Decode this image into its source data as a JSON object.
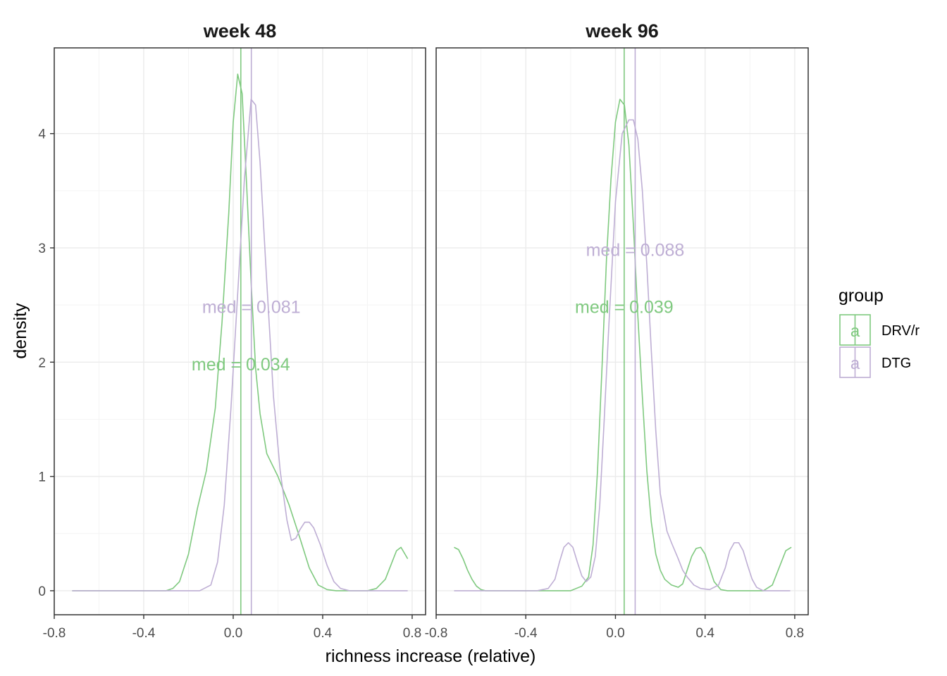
{
  "colors": {
    "drv": "#7FC97F",
    "dtg": "#BEAED4",
    "panel_border": "#333333",
    "grid_major": "#EBEBEB",
    "grid_minor": "#F4F4F4"
  },
  "chart_data": {
    "type": "line",
    "xlabel": "richness increase (relative)",
    "ylabel": "density",
    "xlim": [
      -0.8,
      0.86
    ],
    "ylim": [
      -0.21,
      4.75
    ],
    "x_ticks": [
      -0.8,
      -0.4,
      0.0,
      0.4,
      0.8
    ],
    "x_tick_labels": [
      "-0.8",
      "-0.4",
      "0.0",
      "0.4",
      "0.8"
    ],
    "y_ticks": [
      0,
      1,
      2,
      3,
      4
    ],
    "y_tick_labels": [
      "0",
      "1",
      "2",
      "3",
      "4"
    ],
    "grid": true,
    "legend": {
      "title": "group",
      "position": "right",
      "key_glyph": "a",
      "entries": [
        {
          "label": "DRV/r",
          "color_key": "drv"
        },
        {
          "label": "DTG",
          "color_key": "dtg"
        }
      ]
    },
    "panels": [
      {
        "title": "week 48",
        "series": [
          {
            "name": "DRV/r",
            "color_key": "drv",
            "median": 0.034,
            "x": [
              -0.72,
              -0.3,
              -0.27,
              -0.24,
              -0.2,
              -0.16,
              -0.12,
              -0.08,
              -0.05,
              -0.02,
              0.0,
              0.02,
              0.04,
              0.06,
              0.08,
              0.1,
              0.12,
              0.15,
              0.2,
              0.25,
              0.3,
              0.34,
              0.38,
              0.42,
              0.46,
              0.5,
              0.55,
              0.6,
              0.64,
              0.68,
              0.71,
              0.73,
              0.75,
              0.78
            ],
            "y": [
              0,
              0,
              0.02,
              0.08,
              0.32,
              0.72,
              1.05,
              1.6,
              2.35,
              3.3,
              4.1,
              4.52,
              4.35,
              3.55,
              2.7,
              1.95,
              1.55,
              1.2,
              1.0,
              0.75,
              0.45,
              0.2,
              0.05,
              0.01,
              0,
              0,
              0,
              0,
              0.02,
              0.1,
              0.25,
              0.35,
              0.38,
              0.28
            ]
          },
          {
            "name": "DTG",
            "color_key": "dtg",
            "median": 0.081,
            "x": [
              -0.72,
              -0.15,
              -0.1,
              -0.07,
              -0.04,
              -0.01,
              0.02,
              0.05,
              0.08,
              0.1,
              0.12,
              0.15,
              0.18,
              0.21,
              0.24,
              0.26,
              0.28,
              0.3,
              0.32,
              0.34,
              0.36,
              0.39,
              0.42,
              0.45,
              0.48,
              0.52,
              0.6,
              0.7,
              0.78
            ],
            "y": [
              0,
              0,
              0.05,
              0.25,
              0.75,
              1.6,
              2.6,
              3.6,
              4.3,
              4.25,
              3.75,
              2.7,
              1.7,
              1.05,
              0.62,
              0.44,
              0.46,
              0.54,
              0.6,
              0.6,
              0.55,
              0.4,
              0.22,
              0.08,
              0.02,
              0,
              0,
              0,
              0
            ]
          }
        ],
        "annotations": [
          {
            "text": "med = 0.081",
            "x": 0.081,
            "y": 2.47,
            "color_key": "dtg"
          },
          {
            "text": "med = 0.034",
            "x": 0.034,
            "y": 1.97,
            "color_key": "drv"
          }
        ]
      },
      {
        "title": "week 96",
        "series": [
          {
            "name": "DRV/r",
            "color_key": "drv",
            "median": 0.039,
            "x": [
              -0.72,
              -0.7,
              -0.68,
              -0.66,
              -0.64,
              -0.62,
              -0.6,
              -0.58,
              -0.55,
              -0.5,
              -0.2,
              -0.15,
              -0.12,
              -0.1,
              -0.08,
              -0.06,
              -0.04,
              -0.02,
              0.0,
              0.02,
              0.04,
              0.06,
              0.08,
              0.1,
              0.12,
              0.14,
              0.16,
              0.18,
              0.2,
              0.22,
              0.25,
              0.28,
              0.3,
              0.32,
              0.34,
              0.36,
              0.38,
              0.4,
              0.42,
              0.44,
              0.47,
              0.5,
              0.66,
              0.7,
              0.73,
              0.76,
              0.785
            ],
            "y": [
              0.38,
              0.36,
              0.28,
              0.18,
              0.1,
              0.04,
              0.01,
              0,
              0,
              0,
              0,
              0.04,
              0.12,
              0.4,
              1.05,
              1.95,
              2.9,
              3.6,
              4.1,
              4.3,
              4.25,
              3.9,
              3.2,
              2.4,
              1.7,
              1.05,
              0.6,
              0.32,
              0.18,
              0.1,
              0.05,
              0.03,
              0.06,
              0.18,
              0.3,
              0.37,
              0.38,
              0.32,
              0.2,
              0.08,
              0.01,
              0,
              0,
              0.05,
              0.2,
              0.35,
              0.38
            ]
          },
          {
            "name": "DTG",
            "color_key": "dtg",
            "median": 0.088,
            "x": [
              -0.72,
              -0.35,
              -0.3,
              -0.27,
              -0.25,
              -0.23,
              -0.21,
              -0.19,
              -0.17,
              -0.15,
              -0.13,
              -0.11,
              -0.09,
              -0.07,
              -0.05,
              -0.03,
              0.0,
              0.03,
              0.06,
              0.08,
              0.1,
              0.12,
              0.14,
              0.16,
              0.18,
              0.2,
              0.23,
              0.25,
              0.28,
              0.3,
              0.32,
              0.35,
              0.38,
              0.42,
              0.46,
              0.49,
              0.51,
              0.53,
              0.55,
              0.57,
              0.59,
              0.61,
              0.63,
              0.66,
              0.7,
              0.78
            ],
            "y": [
              0,
              0,
              0.02,
              0.1,
              0.25,
              0.38,
              0.42,
              0.38,
              0.25,
              0.13,
              0.08,
              0.12,
              0.3,
              0.75,
              1.5,
              2.3,
              3.4,
              4.0,
              4.12,
              4.12,
              3.95,
              3.5,
              2.85,
              2.1,
              1.4,
              0.85,
              0.52,
              0.42,
              0.28,
              0.18,
              0.12,
              0.05,
              0.02,
              0.01,
              0.05,
              0.2,
              0.35,
              0.42,
              0.42,
              0.35,
              0.22,
              0.1,
              0.03,
              0,
              0,
              0
            ]
          }
        ],
        "annotations": [
          {
            "text": "med = 0.088",
            "x": 0.088,
            "y": 2.97,
            "color_key": "dtg"
          },
          {
            "text": "med = 0.039",
            "x": 0.039,
            "y": 2.47,
            "color_key": "drv"
          }
        ]
      }
    ]
  }
}
